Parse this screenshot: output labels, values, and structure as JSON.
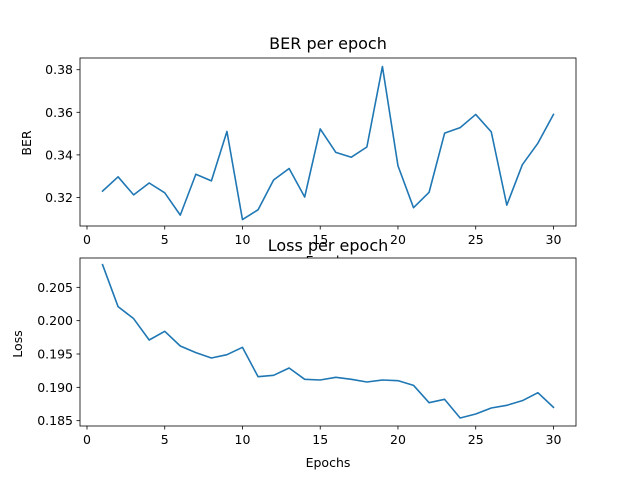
{
  "chart_data": [
    {
      "type": "line",
      "title": "BER per epoch",
      "xlabel": "Epochs",
      "ylabel": "BER",
      "xlim": [
        -0.45,
        31.45
      ],
      "ylim": [
        0.3066,
        0.3855
      ],
      "xticks": [
        0,
        5,
        10,
        15,
        20,
        25,
        30
      ],
      "yticks": [
        0.32,
        0.34,
        0.36,
        0.38
      ],
      "ytick_labels": [
        "0.32",
        "0.34",
        "0.36",
        "0.38"
      ],
      "series_color": "#1f77b4",
      "x": [
        1,
        2,
        3,
        4,
        5,
        6,
        7,
        8,
        9,
        10,
        11,
        12,
        13,
        14,
        15,
        16,
        17,
        18,
        19,
        20,
        21,
        22,
        23,
        24,
        25,
        26,
        27,
        28,
        29,
        30
      ],
      "y": [
        0.323,
        0.3297,
        0.3212,
        0.3268,
        0.3222,
        0.3117,
        0.3309,
        0.3278,
        0.351,
        0.3096,
        0.3142,
        0.3282,
        0.3336,
        0.3202,
        0.3522,
        0.3412,
        0.3389,
        0.3437,
        0.3815,
        0.3349,
        0.3152,
        0.3224,
        0.3502,
        0.3528,
        0.359,
        0.3508,
        0.3164,
        0.3354,
        0.3455,
        0.359
      ]
    },
    {
      "type": "line",
      "title": "Loss per epoch",
      "xlabel": "Epochs",
      "ylabel": "Loss",
      "xlim": [
        -0.45,
        31.45
      ],
      "ylim": [
        0.1842,
        0.2094
      ],
      "xticks": [
        0,
        5,
        10,
        15,
        20,
        25,
        30
      ],
      "yticks": [
        0.185,
        0.19,
        0.195,
        0.2,
        0.205
      ],
      "ytick_labels": [
        "0.185",
        "0.190",
        "0.195",
        "0.200",
        "0.205"
      ],
      "series_color": "#1f77b4",
      "x": [
        1,
        2,
        3,
        4,
        5,
        6,
        7,
        8,
        9,
        10,
        11,
        12,
        13,
        14,
        15,
        16,
        17,
        18,
        19,
        20,
        21,
        22,
        23,
        24,
        25,
        26,
        27,
        28,
        29,
        30
      ],
      "y": [
        0.2084,
        0.2021,
        0.2003,
        0.1971,
        0.1984,
        0.1962,
        0.1952,
        0.1944,
        0.1949,
        0.196,
        0.1916,
        0.1918,
        0.1929,
        0.1912,
        0.1911,
        0.1915,
        0.1912,
        0.1908,
        0.1911,
        0.191,
        0.1903,
        0.1877,
        0.1882,
        0.1854,
        0.186,
        0.1869,
        0.1873,
        0.188,
        0.1892,
        0.187
      ]
    }
  ]
}
